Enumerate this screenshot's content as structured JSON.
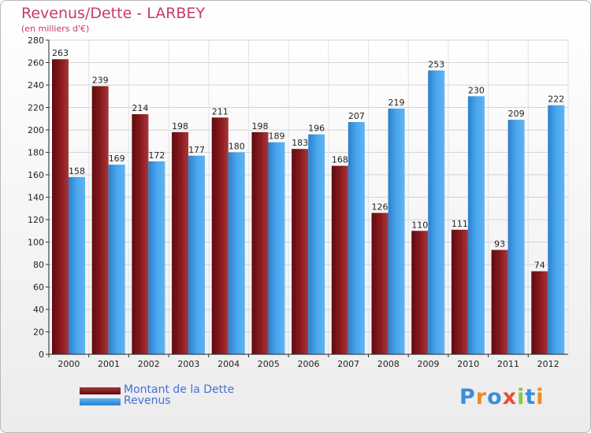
{
  "chart_data": {
    "type": "bar",
    "title": "Revenus/Dette - LARBEY",
    "subtitle": "(en milliers d'€)",
    "categories": [
      "2000",
      "2001",
      "2002",
      "2003",
      "2004",
      "2005",
      "2006",
      "2007",
      "2008",
      "2009",
      "2010",
      "2011",
      "2012"
    ],
    "series": [
      {
        "name": "Montant de la Dette",
        "values": [
          263,
          239,
          214,
          198,
          211,
          198,
          183,
          168,
          126,
          110,
          111,
          93,
          74
        ],
        "color": "#8b1a1e"
      },
      {
        "name": "Revenus",
        "values": [
          158,
          169,
          172,
          177,
          180,
          189,
          196,
          207,
          219,
          253,
          230,
          209,
          222
        ],
        "color": "#3f9be6"
      }
    ],
    "ylim": [
      0,
      280
    ],
    "yticks": [
      0,
      20,
      40,
      60,
      80,
      100,
      120,
      140,
      160,
      180,
      200,
      220,
      240,
      260,
      280
    ],
    "grid": true,
    "legend": "bottom-left"
  },
  "logo": {
    "text": "Proxiti",
    "colors": [
      "#3a8fd8",
      "#f18a22",
      "#3a8fd8",
      "#e94f37",
      "#8cc63f",
      "#3a8fd8",
      "#f18a22"
    ]
  }
}
